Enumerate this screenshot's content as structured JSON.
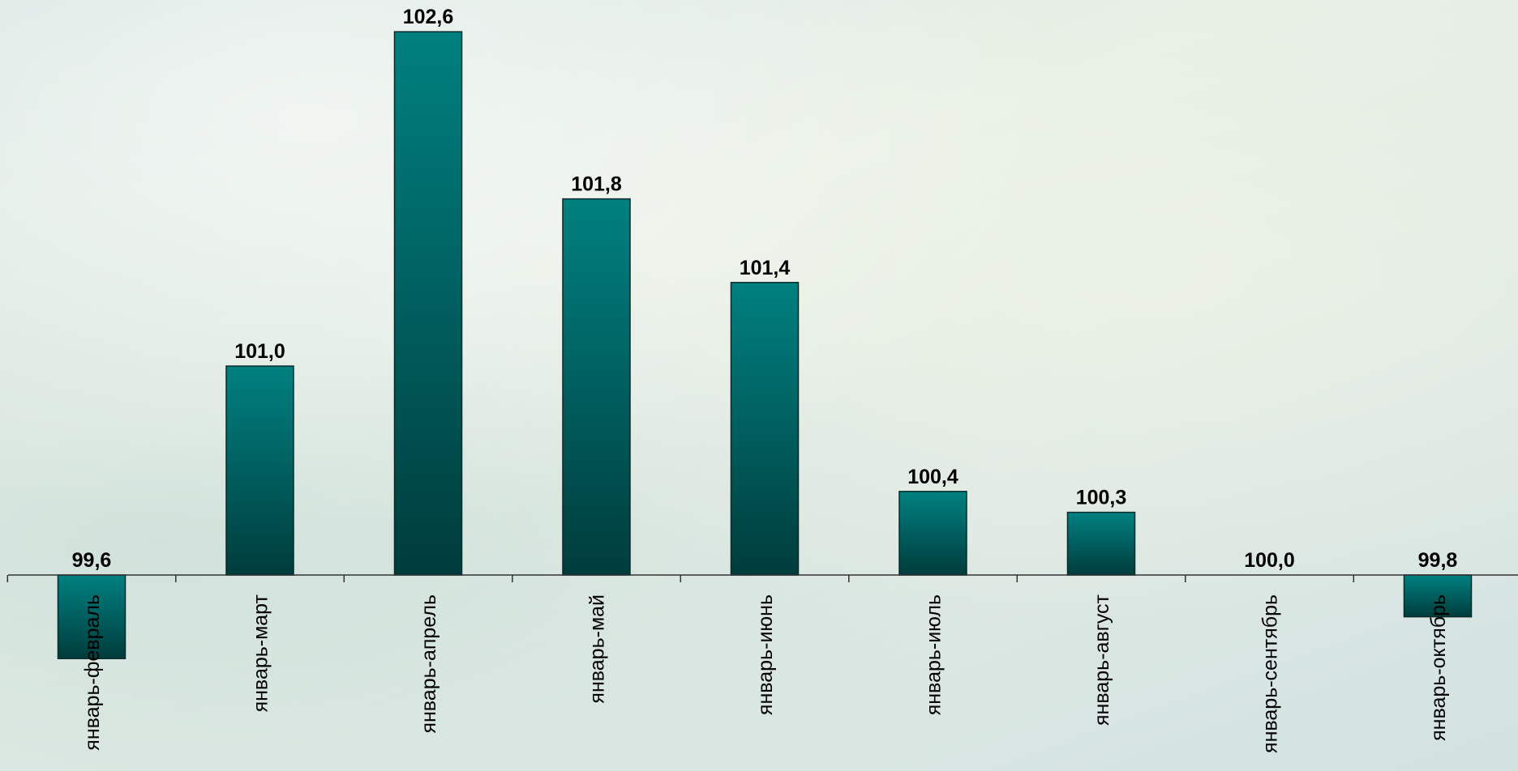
{
  "chart_data": {
    "type": "bar",
    "categories": [
      "январь-февраль",
      "январь-март",
      "январь-апрель",
      "январь-май",
      "январь-июнь",
      "январь-июль",
      "январь-август",
      "январь-сентябрь",
      "январь-октябрь"
    ],
    "values": [
      99.6,
      101.0,
      102.6,
      101.8,
      101.4,
      100.4,
      100.3,
      100.0,
      99.8
    ],
    "data_labels": [
      "99,6",
      "101,0",
      "102,6",
      "101,8",
      "101,4",
      "100,4",
      "100,3",
      "100,0",
      "99,8"
    ],
    "baseline": 100.0,
    "ylim": [
      99.2,
      102.6
    ],
    "title": "",
    "xlabel": "",
    "ylabel": "",
    "grid": false,
    "legend": "none",
    "bar_color_top": "#008080",
    "bar_color_bottom": "#003c3c"
  }
}
